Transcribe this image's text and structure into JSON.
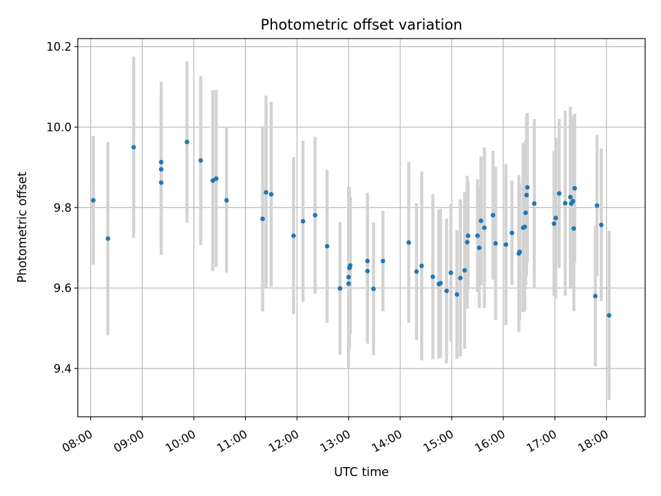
{
  "chart_data": {
    "type": "scatter",
    "title": "Photometric offset variation",
    "xlabel": "UTC time",
    "ylabel": "Photometric offset",
    "grid": true,
    "x_unit": "UTC hh:mm",
    "xlim": [
      "07:45",
      "18:45"
    ],
    "ylim": [
      9.28,
      10.22
    ],
    "x_ticks": [
      "08:00",
      "09:00",
      "10:00",
      "11:00",
      "12:00",
      "13:00",
      "14:00",
      "15:00",
      "16:00",
      "17:00",
      "18:00"
    ],
    "y_ticks": [
      9.4,
      9.6,
      9.8,
      10.0,
      10.2
    ],
    "y_tick_labels": [
      "9.4",
      "9.6",
      "9.8",
      "10.0",
      "10.2"
    ],
    "colors": {
      "marker": "#1f77b4",
      "errorbar": "#d3d3d3",
      "grid": "#b0b0b0"
    },
    "series": [
      {
        "x": [
          "08:03",
          "08:20",
          "08:50",
          "09:22",
          "09:22",
          "09:22",
          "09:52",
          "10:08",
          "10:22",
          "10:26",
          "10:38",
          "11:20",
          "11:24",
          "11:30",
          "11:56",
          "12:07",
          "12:21",
          "12:35",
          "12:50",
          "13:00",
          "13:00",
          "13:01",
          "13:02",
          "13:22",
          "13:22",
          "13:29",
          "13:40",
          "14:10",
          "14:19",
          "14:25",
          "14:38",
          "14:45",
          "14:47",
          "14:54",
          "14:59",
          "15:06",
          "15:10",
          "15:15",
          "15:18",
          "15:19",
          "15:30",
          "15:32",
          "15:34",
          "15:38",
          "15:48",
          "15:51",
          "16:03",
          "16:10",
          "16:18",
          "16:19",
          "16:23",
          "16:25",
          "16:26",
          "16:27",
          "16:28",
          "16:36",
          "16:59",
          "17:01",
          "17:05",
          "17:12",
          "17:18",
          "17:19",
          "17:21",
          "17:22",
          "17:23",
          "17:47",
          "17:49",
          "17:54",
          "18:03"
        ],
        "y": [
          9.818,
          9.723,
          9.95,
          9.913,
          9.895,
          9.862,
          9.963,
          9.917,
          9.867,
          9.872,
          9.818,
          9.772,
          9.838,
          9.833,
          9.73,
          9.766,
          9.781,
          9.704,
          9.599,
          9.627,
          9.611,
          9.65,
          9.656,
          9.642,
          9.667,
          9.598,
          9.667,
          9.713,
          9.641,
          9.655,
          9.628,
          9.61,
          9.612,
          9.593,
          9.638,
          9.584,
          9.625,
          9.644,
          9.714,
          9.73,
          9.73,
          9.7,
          9.767,
          9.75,
          9.781,
          9.711,
          9.708,
          9.737,
          9.686,
          9.69,
          9.75,
          9.752,
          9.787,
          9.831,
          9.85,
          9.81,
          9.76,
          9.774,
          9.835,
          9.811,
          9.826,
          9.81,
          9.816,
          9.748,
          9.848,
          9.58,
          9.805,
          9.757,
          9.532
        ],
        "yerr": [
          0.16,
          0.24,
          0.225,
          0.2,
          0.18,
          0.18,
          0.2,
          0.21,
          0.225,
          0.22,
          0.18,
          0.23,
          0.24,
          0.23,
          0.195,
          0.2,
          0.195,
          0.19,
          0.165,
          0.225,
          0.205,
          0.2,
          0.17,
          0.18,
          0.17,
          0.165,
          0.125,
          0.2,
          0.17,
          0.235,
          0.205,
          0.185,
          0.185,
          0.18,
          0.17,
          0.16,
          0.195,
          0.195,
          0.165,
          0.135,
          0.14,
          0.15,
          0.16,
          0.2,
          0.16,
          0.19,
          0.2,
          0.13,
          0.195,
          0.17,
          0.21,
          0.21,
          0.18,
          0.2,
          0.185,
          0.21,
          0.18,
          0.2,
          0.185,
          0.23,
          0.225,
          0.21,
          0.21,
          0.205,
          0.185,
          0.175,
          0.175,
          0.19,
          0.21
        ]
      }
    ]
  }
}
